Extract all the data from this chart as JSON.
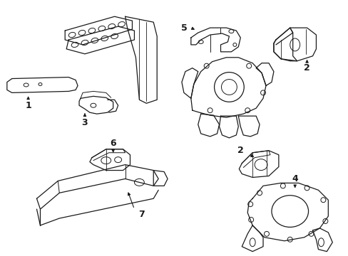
{
  "background_color": "#ffffff",
  "line_color": "#1a1a1a",
  "line_width": 0.9,
  "fig_width": 4.89,
  "fig_height": 3.6,
  "dpi": 100
}
